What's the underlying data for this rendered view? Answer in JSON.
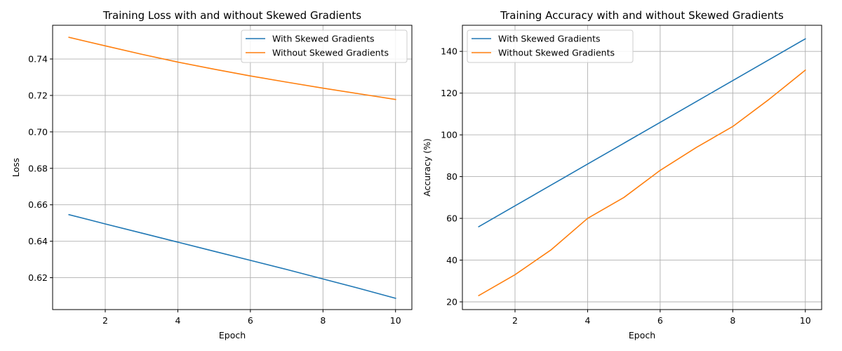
{
  "colors": {
    "series_1": "#1f77b4",
    "series_2": "#ff7f0e"
  },
  "chart_data": [
    {
      "type": "line",
      "title": "Training Loss with and without Skewed Gradients",
      "xlabel": "Epoch",
      "ylabel": "Loss",
      "grid": true,
      "legend_position": "top-right",
      "xlim": [
        0.55,
        10.45
      ],
      "ylim": [
        0.6025,
        0.7585
      ],
      "xticks": [
        2,
        4,
        6,
        8,
        10
      ],
      "xtick_labels": [
        "2",
        "4",
        "6",
        "8",
        "10"
      ],
      "yticks": [
        0.62,
        0.64,
        0.66,
        0.68,
        0.7,
        0.72,
        0.74
      ],
      "ytick_labels": [
        "0.62",
        "0.64",
        "0.66",
        "0.68",
        "0.70",
        "0.72",
        "0.74"
      ],
      "x": [
        1,
        2,
        3,
        4,
        5,
        6,
        7,
        8,
        9,
        10
      ],
      "series": [
        {
          "name": "With Skewed Gradients",
          "color": "#1f77b4",
          "values": [
            0.6546,
            0.6495,
            0.6445,
            0.6395,
            0.6345,
            0.6295,
            0.6245,
            0.6193,
            0.6141,
            0.6087
          ]
        },
        {
          "name": "Without Skewed Gradients",
          "color": "#ff7f0e",
          "values": [
            0.7519,
            0.7472,
            0.7426,
            0.7383,
            0.7344,
            0.7307,
            0.7273,
            0.724,
            0.7209,
            0.7178
          ]
        }
      ]
    },
    {
      "type": "line",
      "title": "Training Accuracy with and without Skewed Gradients",
      "xlabel": "Epoch",
      "ylabel": "Accuracy (%)",
      "grid": true,
      "legend_position": "top-left",
      "xlim": [
        0.55,
        10.45
      ],
      "ylim": [
        16.3,
        152.5
      ],
      "xticks": [
        2,
        4,
        6,
        8,
        10
      ],
      "xtick_labels": [
        "2",
        "4",
        "6",
        "8",
        "10"
      ],
      "yticks": [
        20,
        40,
        60,
        80,
        100,
        120,
        140
      ],
      "ytick_labels": [
        "20",
        "40",
        "60",
        "80",
        "100",
        "120",
        "140"
      ],
      "x": [
        1,
        2,
        3,
        4,
        5,
        6,
        7,
        8,
        9,
        10
      ],
      "series": [
        {
          "name": "With Skewed Gradients",
          "color": "#1f77b4",
          "values": [
            56,
            66,
            76,
            86,
            96,
            106,
            116,
            126,
            136,
            146
          ]
        },
        {
          "name": "Without Skewed Gradients",
          "color": "#ff7f0e",
          "values": [
            23,
            33,
            45,
            60,
            70,
            83,
            94,
            104,
            117,
            131
          ]
        }
      ]
    }
  ]
}
